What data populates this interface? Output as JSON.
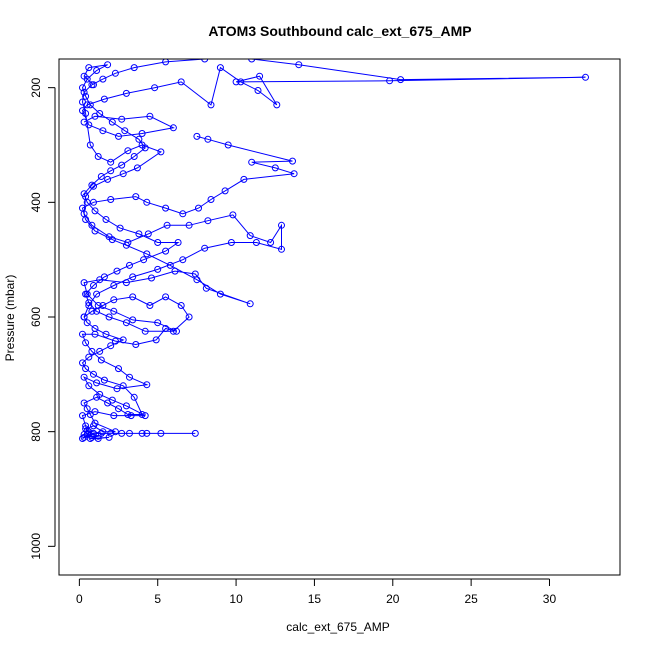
{
  "chart_data": {
    "type": "scatter",
    "title": "ATOM3 Southbound calc_ext_675_AMP",
    "xlabel": "calc_ext_675_AMP",
    "ylabel": "Pressure (mbar)",
    "xlim": [
      -1.3,
      34.5
    ],
    "ylim": [
      1050,
      150
    ],
    "y_reversed": true,
    "grid": false,
    "legend": "none",
    "xticks": [
      0,
      5,
      10,
      15,
      20,
      25,
      30
    ],
    "yticks": [
      200,
      400,
      600,
      800,
      1000
    ],
    "xtick_labels": [
      "0",
      "5",
      "10",
      "15",
      "20",
      "25",
      "30"
    ],
    "ytick_labels": [
      "200",
      "400",
      "600",
      "800",
      "1000"
    ],
    "series": [
      {
        "values": [
          [
            0.3,
            810
          ],
          [
            0.5,
            805
          ],
          [
            0.8,
            810
          ],
          [
            1.2,
            808
          ],
          [
            0.6,
            800
          ],
          [
            0.4,
            795
          ],
          [
            0.9,
            790
          ],
          [
            1.5,
            800
          ],
          [
            2.3,
            800
          ],
          [
            1.0,
            785
          ],
          [
            0.7,
            770
          ],
          [
            0.5,
            760
          ],
          [
            0.3,
            750
          ],
          [
            1.1,
            740
          ],
          [
            1.8,
            750
          ],
          [
            2.5,
            760
          ],
          [
            3.1,
            770
          ],
          [
            4.0,
            770
          ],
          [
            3.5,
            740
          ],
          [
            2.8,
            720
          ],
          [
            1.6,
            710
          ],
          [
            0.9,
            700
          ],
          [
            0.4,
            690
          ],
          [
            0.2,
            680
          ],
          [
            0.6,
            670
          ],
          [
            1.3,
            660
          ],
          [
            2.0,
            650
          ],
          [
            2.8,
            640
          ],
          [
            1.7,
            630
          ],
          [
            1.0,
            620
          ],
          [
            0.5,
            610
          ],
          [
            0.3,
            600
          ],
          [
            0.8,
            590
          ],
          [
            1.5,
            580
          ],
          [
            2.2,
            570
          ],
          [
            3.4,
            565
          ],
          [
            4.5,
            580
          ],
          [
            5.5,
            565
          ],
          [
            6.5,
            580
          ],
          [
            7.0,
            600
          ],
          [
            6.0,
            625
          ],
          [
            4.2,
            625
          ],
          [
            3.0,
            610
          ],
          [
            1.9,
            600
          ],
          [
            1.1,
            590
          ],
          [
            0.6,
            575
          ],
          [
            0.4,
            560
          ],
          [
            0.9,
            545
          ],
          [
            1.6,
            530
          ],
          [
            2.4,
            520
          ],
          [
            3.2,
            510
          ],
          [
            4.1,
            500
          ],
          [
            5.5,
            485
          ],
          [
            6.3,
            470
          ],
          [
            5.0,
            470
          ],
          [
            3.8,
            455
          ],
          [
            2.6,
            445
          ],
          [
            1.7,
            430
          ],
          [
            1.0,
            415
          ],
          [
            0.5,
            400
          ],
          [
            0.3,
            385
          ],
          [
            0.8,
            370
          ],
          [
            1.4,
            355
          ],
          [
            2.0,
            345
          ],
          [
            2.7,
            335
          ],
          [
            3.5,
            320
          ],
          [
            4.2,
            305
          ],
          [
            3.8,
            290
          ],
          [
            2.9,
            275
          ],
          [
            2.1,
            260
          ],
          [
            1.3,
            245
          ],
          [
            0.7,
            230
          ],
          [
            0.4,
            215
          ],
          [
            0.2,
            200
          ],
          [
            0.5,
            185
          ],
          [
            1.1,
            170
          ],
          [
            1.8,
            160
          ],
          [
            0.6,
            165
          ],
          [
            0.3,
            180
          ],
          [
            0.9,
            195
          ]
        ]
      },
      {
        "values": [
          [
            0.2,
            812
          ],
          [
            0.9,
            803
          ],
          [
            2.0,
            803
          ],
          [
            3.2,
            803
          ],
          [
            4.3,
            803
          ],
          [
            5.2,
            803
          ],
          [
            7.4,
            803
          ],
          [
            4.0,
            803
          ],
          [
            2.7,
            803
          ],
          [
            1.4,
            803
          ],
          [
            0.5,
            798
          ],
          [
            0.3,
            805
          ],
          [
            1.2,
            812
          ],
          [
            1.9,
            810
          ],
          [
            0.7,
            812
          ],
          [
            0.4,
            790
          ],
          [
            0.2,
            772
          ],
          [
            1.0,
            765
          ],
          [
            2.2,
            772
          ],
          [
            3.3,
            772
          ],
          [
            4.2,
            772
          ],
          [
            3.0,
            755
          ],
          [
            2.1,
            745
          ],
          [
            1.3,
            735
          ],
          [
            0.6,
            720
          ],
          [
            0.3,
            705
          ],
          [
            1.1,
            715
          ],
          [
            2.4,
            725
          ],
          [
            4.3,
            718
          ],
          [
            3.2,
            705
          ],
          [
            2.5,
            690
          ],
          [
            1.4,
            675
          ],
          [
            0.8,
            660
          ],
          [
            0.4,
            645
          ],
          [
            0.2,
            630
          ],
          [
            1.0,
            630
          ],
          [
            2.3,
            642
          ],
          [
            3.6,
            648
          ],
          [
            4.9,
            640
          ],
          [
            5.5,
            620
          ],
          [
            6.2,
            625
          ],
          [
            5.0,
            610
          ],
          [
            3.4,
            605
          ],
          [
            2.2,
            590
          ],
          [
            1.2,
            580
          ],
          [
            0.5,
            560
          ],
          [
            0.3,
            540
          ],
          [
            1.3,
            535
          ],
          [
            3.0,
            540
          ],
          [
            4.6,
            532
          ],
          [
            6.1,
            520
          ],
          [
            7.4,
            525
          ],
          [
            8.1,
            550
          ],
          [
            10.9,
            577
          ],
          [
            9.0,
            560
          ],
          [
            7.5,
            535
          ],
          [
            5.8,
            510
          ],
          [
            4.3,
            490
          ],
          [
            3.0,
            475
          ],
          [
            2.1,
            465
          ],
          [
            1.0,
            450
          ],
          [
            0.4,
            430
          ],
          [
            0.2,
            410
          ],
          [
            0.9,
            400
          ],
          [
            2.0,
            395
          ],
          [
            3.6,
            390
          ],
          [
            4.3,
            400
          ],
          [
            5.5,
            410
          ],
          [
            6.6,
            420
          ],
          [
            7.6,
            410
          ],
          [
            8.4,
            395
          ],
          [
            9.3,
            380
          ],
          [
            10.5,
            360
          ],
          [
            13.7,
            350
          ],
          [
            12.5,
            340
          ],
          [
            11.0,
            330
          ],
          [
            13.6,
            328
          ],
          [
            9.5,
            300
          ],
          [
            8.2,
            290
          ],
          [
            7.5,
            285
          ]
        ]
      },
      {
        "values": [
          [
            0.3,
            260
          ],
          [
            1.0,
            250
          ],
          [
            2.7,
            255
          ],
          [
            4.5,
            250
          ],
          [
            6.0,
            270
          ],
          [
            4.0,
            280
          ],
          [
            2.5,
            285
          ],
          [
            1.5,
            275
          ],
          [
            0.6,
            265
          ],
          [
            0.2,
            240
          ],
          [
            0.5,
            230
          ],
          [
            1.6,
            220
          ],
          [
            3.0,
            210
          ],
          [
            4.8,
            200
          ],
          [
            6.5,
            190
          ],
          [
            8.4,
            230
          ],
          [
            9.0,
            165
          ],
          [
            10.3,
            190
          ],
          [
            11.4,
            205
          ],
          [
            12.6,
            230
          ],
          [
            11.5,
            180
          ],
          [
            10.0,
            190
          ],
          [
            19.8,
            188
          ],
          [
            32.3,
            182
          ],
          [
            20.5,
            186
          ],
          [
            14.0,
            160
          ],
          [
            11.0,
            150
          ],
          [
            8.0,
            150
          ],
          [
            5.5,
            155
          ],
          [
            3.5,
            165
          ],
          [
            2.3,
            175
          ],
          [
            1.5,
            185
          ],
          [
            0.8,
            195
          ],
          [
            0.3,
            208
          ],
          [
            0.2,
            225
          ],
          [
            0.4,
            245
          ],
          [
            0.7,
            300
          ],
          [
            1.2,
            320
          ],
          [
            2.0,
            330
          ],
          [
            3.1,
            310
          ],
          [
            4.0,
            300
          ],
          [
            5.2,
            312
          ],
          [
            3.7,
            340
          ],
          [
            2.8,
            350
          ],
          [
            1.8,
            360
          ],
          [
            0.9,
            372
          ],
          [
            0.4,
            390
          ],
          [
            0.3,
            420
          ],
          [
            0.8,
            440
          ],
          [
            1.9,
            460
          ],
          [
            3.1,
            470
          ],
          [
            4.4,
            455
          ],
          [
            5.6,
            440
          ],
          [
            7.0,
            440
          ],
          [
            8.2,
            432
          ],
          [
            9.8,
            422
          ],
          [
            10.9,
            458
          ],
          [
            12.2,
            470
          ],
          [
            12.9,
            440
          ],
          [
            12.9,
            482
          ],
          [
            11.3,
            470
          ],
          [
            9.7,
            470
          ],
          [
            8.0,
            480
          ],
          [
            6.6,
            500
          ],
          [
            5.0,
            517
          ],
          [
            3.4,
            530
          ],
          [
            2.2,
            545
          ],
          [
            1.1,
            560
          ],
          [
            0.6,
            580
          ],
          [
            0.3,
            600
          ]
        ]
      }
    ]
  }
}
